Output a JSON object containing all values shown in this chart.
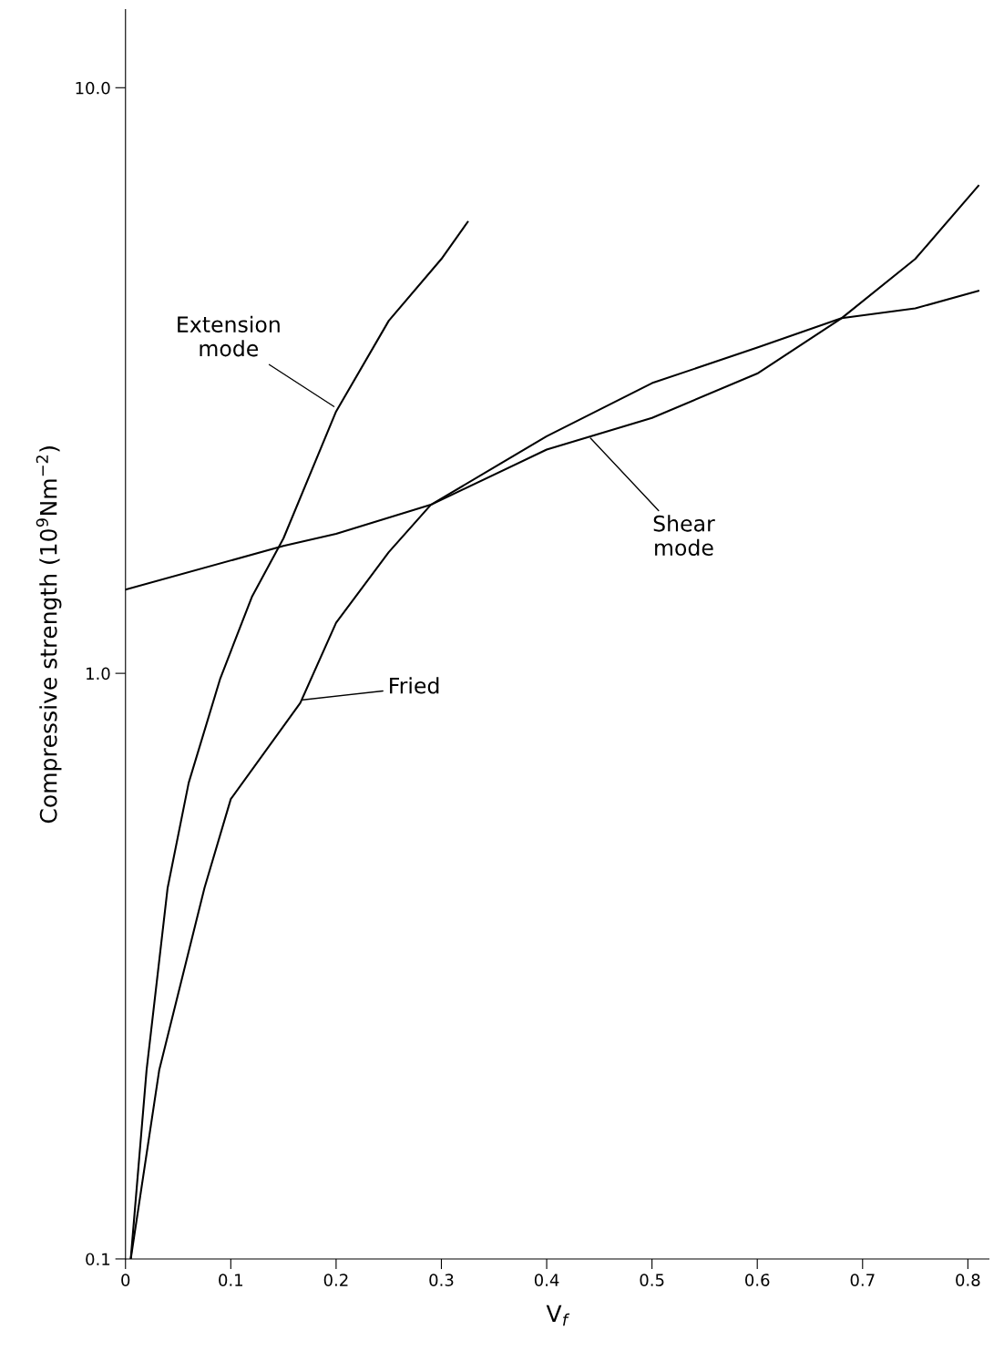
{
  "chart_data": {
    "type": "line",
    "xlabel": "V$_{f}$",
    "ylabel": "Compressive strength (10$^{9}$Nm$^{−2}$)",
    "log": "y",
    "grid": false,
    "legend": false,
    "marker": "none",
    "line_style": "solid",
    "xlim": [
      0,
      0.82
    ],
    "ylim": [
      0.1,
      13.6
    ],
    "xticks": [
      0,
      0.1,
      0.2,
      0.3,
      0.4,
      0.5,
      0.6,
      0.7,
      0.8
    ],
    "yticks": [
      0.1,
      {
        "value": 1,
        "label": "1.0"
      },
      {
        "value": 10,
        "label": "10.0"
      }
    ],
    "series": [
      {
        "color": "#000000",
        "x": [
          0.005,
          0.02,
          0.04,
          0.06,
          0.09,
          0.12,
          0.15,
          0.2,
          0.25,
          0.3,
          0.325
        ],
        "values": [
          0.1,
          0.21,
          0.43,
          0.65,
          0.98,
          1.35,
          1.7,
          2.8,
          4.0,
          5.1,
          5.9
        ]
      },
      {
        "color": "#000000",
        "x": [
          0.005,
          0.032,
          0.075,
          0.1,
          0.166,
          0.2,
          0.25,
          0.29,
          0.4,
          0.5,
          0.6,
          0.68,
          0.75,
          0.81
        ],
        "values": [
          0.1,
          0.21,
          0.43,
          0.61,
          0.89,
          1.22,
          1.61,
          1.94,
          2.54,
          3.13,
          3.6,
          4.04,
          4.2,
          4.5
        ]
      },
      {
        "color": "#000000",
        "x": [
          0,
          0.15,
          0.2,
          0.29,
          0.4,
          0.5,
          0.6,
          0.68,
          0.75,
          0.81
        ],
        "values": [
          1.39,
          1.65,
          1.73,
          1.94,
          2.41,
          2.73,
          3.25,
          4.04,
          5.1,
          6.8
        ]
      }
    ],
    "annotations": [
      {
        "text": "Extension\nmode",
        "x": 0.2,
        "y": 2.84
      },
      {
        "text": "Shear\nmode",
        "x": 0.44,
        "y": 2.54
      },
      {
        "text": "Fried",
        "x": 0.166,
        "y": 0.9
      }
    ]
  }
}
